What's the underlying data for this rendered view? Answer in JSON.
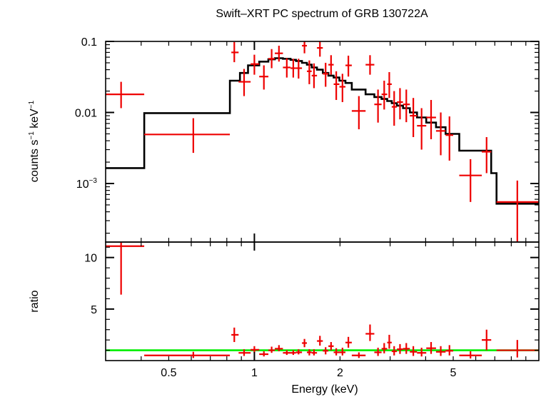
{
  "chart_data": [
    {
      "type": "scatter",
      "title": "Swift–XRT PC spectrum of GRB 130722A",
      "ylabel_parts": [
        "counts s",
        "−1",
        " keV",
        "−1"
      ],
      "xscale": "log",
      "yscale": "log",
      "xlim": [
        0.3,
        10
      ],
      "ylim": [
        0.00015,
        0.1
      ],
      "yticks": [
        {
          "v": 0.1,
          "label": "0.1"
        },
        {
          "v": 0.01,
          "label": "0.01"
        },
        {
          "v": 0.001,
          "base": "10",
          "exp": "−3"
        }
      ],
      "colors": {
        "data": "#ee0000",
        "model": "#000000"
      },
      "series": [
        {
          "points": [
            {
              "x": 0.34,
              "xlo": 0.3,
              "xhi": 0.41,
              "y": 0.018,
              "ylo": 0.0115,
              "yhi": 0.027
            },
            {
              "x": 0.61,
              "xlo": 0.41,
              "xhi": 0.82,
              "y": 0.0049,
              "ylo": 0.0027,
              "yhi": 0.0083
            },
            {
              "x": 0.85,
              "xlo": 0.83,
              "xhi": 0.88,
              "y": 0.07,
              "ylo": 0.051,
              "yhi": 0.098
            },
            {
              "x": 0.92,
              "xlo": 0.88,
              "xhi": 0.97,
              "y": 0.027,
              "ylo": 0.017,
              "yhi": 0.041
            },
            {
              "x": 1.0,
              "xlo": 0.97,
              "xhi": 1.04,
              "y": 0.048,
              "ylo": 0.034,
              "yhi": 0.065
            },
            {
              "x": 1.08,
              "xlo": 1.04,
              "xhi": 1.12,
              "y": 0.032,
              "ylo": 0.021,
              "yhi": 0.046
            },
            {
              "x": 1.15,
              "xlo": 1.12,
              "xhi": 1.18,
              "y": 0.057,
              "ylo": 0.042,
              "yhi": 0.078
            },
            {
              "x": 1.22,
              "xlo": 1.18,
              "xhi": 1.26,
              "y": 0.068,
              "ylo": 0.052,
              "yhi": 0.087
            },
            {
              "x": 1.3,
              "xlo": 1.26,
              "xhi": 1.34,
              "y": 0.043,
              "ylo": 0.031,
              "yhi": 0.058
            },
            {
              "x": 1.37,
              "xlo": 1.34,
              "xhi": 1.4,
              "y": 0.042,
              "ylo": 0.031,
              "yhi": 0.057
            },
            {
              "x": 1.43,
              "xlo": 1.4,
              "xhi": 1.47,
              "y": 0.042,
              "ylo": 0.03,
              "yhi": 0.057
            },
            {
              "x": 1.5,
              "xlo": 1.47,
              "xhi": 1.53,
              "y": 0.087,
              "ylo": 0.068,
              "yhi": 0.105
            },
            {
              "x": 1.56,
              "xlo": 1.53,
              "xhi": 1.59,
              "y": 0.038,
              "ylo": 0.025,
              "yhi": 0.054
            },
            {
              "x": 1.62,
              "xlo": 1.59,
              "xhi": 1.66,
              "y": 0.033,
              "ylo": 0.022,
              "yhi": 0.049
            },
            {
              "x": 1.7,
              "xlo": 1.66,
              "xhi": 1.74,
              "y": 0.081,
              "ylo": 0.061,
              "yhi": 0.104
            },
            {
              "x": 1.78,
              "xlo": 1.74,
              "xhi": 1.82,
              "y": 0.035,
              "ylo": 0.023,
              "yhi": 0.05
            },
            {
              "x": 1.86,
              "xlo": 1.82,
              "xhi": 1.9,
              "y": 0.047,
              "ylo": 0.034,
              "yhi": 0.064
            },
            {
              "x": 1.94,
              "xlo": 1.9,
              "xhi": 1.99,
              "y": 0.025,
              "ylo": 0.015,
              "yhi": 0.038
            },
            {
              "x": 2.04,
              "xlo": 1.99,
              "xhi": 2.09,
              "y": 0.023,
              "ylo": 0.014,
              "yhi": 0.035
            },
            {
              "x": 2.14,
              "xlo": 2.09,
              "xhi": 2.2,
              "y": 0.046,
              "ylo": 0.032,
              "yhi": 0.063
            },
            {
              "x": 2.33,
              "xlo": 2.2,
              "xhi": 2.46,
              "y": 0.0105,
              "ylo": 0.0058,
              "yhi": 0.017
            },
            {
              "x": 2.55,
              "xlo": 2.46,
              "xhi": 2.64,
              "y": 0.047,
              "ylo": 0.034,
              "yhi": 0.064
            },
            {
              "x": 2.72,
              "xlo": 2.64,
              "xhi": 2.8,
              "y": 0.013,
              "ylo": 0.0072,
              "yhi": 0.021
            },
            {
              "x": 2.86,
              "xlo": 2.8,
              "xhi": 2.93,
              "y": 0.018,
              "ylo": 0.011,
              "yhi": 0.028
            },
            {
              "x": 2.98,
              "xlo": 2.93,
              "xhi": 3.04,
              "y": 0.025,
              "ylo": 0.016,
              "yhi": 0.037
            },
            {
              "x": 3.1,
              "xlo": 3.04,
              "xhi": 3.17,
              "y": 0.012,
              "ylo": 0.0065,
              "yhi": 0.02
            },
            {
              "x": 3.25,
              "xlo": 3.17,
              "xhi": 3.33,
              "y": 0.014,
              "ylo": 0.008,
              "yhi": 0.022
            },
            {
              "x": 3.42,
              "xlo": 3.33,
              "xhi": 3.52,
              "y": 0.013,
              "ylo": 0.0073,
              "yhi": 0.021
            },
            {
              "x": 3.62,
              "xlo": 3.52,
              "xhi": 3.73,
              "y": 0.009,
              "ylo": 0.0045,
              "yhi": 0.016
            },
            {
              "x": 3.87,
              "xlo": 3.73,
              "xhi": 4.02,
              "y": 0.0065,
              "ylo": 0.003,
              "yhi": 0.0115
            },
            {
              "x": 4.18,
              "xlo": 4.02,
              "xhi": 4.35,
              "y": 0.0085,
              "ylo": 0.0042,
              "yhi": 0.015
            },
            {
              "x": 4.52,
              "xlo": 4.35,
              "xhi": 4.7,
              "y": 0.0055,
              "ylo": 0.0025,
              "yhi": 0.01
            },
            {
              "x": 4.85,
              "xlo": 4.7,
              "xhi": 5.0,
              "y": 0.0048,
              "ylo": 0.0021,
              "yhi": 0.0088
            },
            {
              "x": 5.75,
              "xlo": 5.25,
              "xhi": 6.3,
              "y": 0.0013,
              "ylo": 0.00055,
              "yhi": 0.0022
            },
            {
              "x": 6.55,
              "xlo": 6.3,
              "xhi": 6.8,
              "y": 0.0028,
              "ylo": 0.0014,
              "yhi": 0.0045
            },
            {
              "x": 8.4,
              "xlo": 7.1,
              "xhi": 10.0,
              "y": 0.00055,
              "ylo": 0.00015,
              "yhi": 0.0011
            }
          ]
        }
      ],
      "model_steps": [
        {
          "x0": 0.3,
          "x1": 0.41,
          "y": 0.00165
        },
        {
          "x0": 0.41,
          "x1": 0.82,
          "y": 0.0098
        },
        {
          "x0": 0.82,
          "x1": 0.89,
          "y": 0.028
        },
        {
          "x0": 0.89,
          "x1": 0.95,
          "y": 0.036
        },
        {
          "x0": 0.95,
          "x1": 1.04,
          "y": 0.046
        },
        {
          "x0": 1.04,
          "x1": 1.12,
          "y": 0.052
        },
        {
          "x0": 1.12,
          "x1": 1.18,
          "y": 0.056
        },
        {
          "x0": 1.18,
          "x1": 1.26,
          "y": 0.058
        },
        {
          "x0": 1.26,
          "x1": 1.34,
          "y": 0.057
        },
        {
          "x0": 1.34,
          "x1": 1.4,
          "y": 0.055
        },
        {
          "x0": 1.4,
          "x1": 1.47,
          "y": 0.053
        },
        {
          "x0": 1.47,
          "x1": 1.53,
          "y": 0.05
        },
        {
          "x0": 1.53,
          "x1": 1.59,
          "y": 0.047
        },
        {
          "x0": 1.59,
          "x1": 1.66,
          "y": 0.043
        },
        {
          "x0": 1.66,
          "x1": 1.74,
          "y": 0.04
        },
        {
          "x0": 1.74,
          "x1": 1.82,
          "y": 0.036
        },
        {
          "x0": 1.82,
          "x1": 1.9,
          "y": 0.033
        },
        {
          "x0": 1.9,
          "x1": 1.99,
          "y": 0.031
        },
        {
          "x0": 1.99,
          "x1": 2.09,
          "y": 0.028
        },
        {
          "x0": 2.09,
          "x1": 2.2,
          "y": 0.026
        },
        {
          "x0": 2.2,
          "x1": 2.46,
          "y": 0.021
        },
        {
          "x0": 2.46,
          "x1": 2.64,
          "y": 0.018
        },
        {
          "x0": 2.64,
          "x1": 2.8,
          "y": 0.0165
        },
        {
          "x0": 2.8,
          "x1": 2.93,
          "y": 0.0155
        },
        {
          "x0": 2.93,
          "x1": 3.04,
          "y": 0.0145
        },
        {
          "x0": 3.04,
          "x1": 3.17,
          "y": 0.0135
        },
        {
          "x0": 3.17,
          "x1": 3.33,
          "y": 0.0125
        },
        {
          "x0": 3.33,
          "x1": 3.52,
          "y": 0.0115
        },
        {
          "x0": 3.52,
          "x1": 3.73,
          "y": 0.01
        },
        {
          "x0": 3.73,
          "x1": 4.02,
          "y": 0.0085
        },
        {
          "x0": 4.02,
          "x1": 4.35,
          "y": 0.0072
        },
        {
          "x0": 4.35,
          "x1": 4.7,
          "y": 0.0062
        },
        {
          "x0": 4.7,
          "x1": 5.25,
          "y": 0.005
        },
        {
          "x0": 5.25,
          "x1": 6.8,
          "y": 0.0029
        },
        {
          "x0": 6.8,
          "x1": 7.1,
          "y": 0.0014
        },
        {
          "x0": 7.1,
          "x1": 10.0,
          "y": 0.00052
        }
      ]
    },
    {
      "type": "scatter",
      "xlabel": "Energy (keV)",
      "ylabel": "ratio",
      "xscale": "log",
      "xlim": [
        0.3,
        10
      ],
      "ylim": [
        0,
        11.5
      ],
      "yticks": [
        {
          "v": 10,
          "label": "10"
        },
        {
          "v": 5,
          "label": "5"
        }
      ],
      "xticks": [
        {
          "v": 0.5,
          "label": "0.5"
        },
        {
          "v": 1,
          "label": "1"
        },
        {
          "v": 2,
          "label": "2"
        },
        {
          "v": 5,
          "label": "5"
        }
      ],
      "reference_line": 1,
      "colors": {
        "data": "#ee0000",
        "reference": "#00ee00"
      },
      "series": [
        {
          "points": [
            {
              "x": 0.34,
              "xlo": 0.3,
              "xhi": 0.41,
              "y": 11.1,
              "ylo": 6.4,
              "yhi": 11.5
            },
            {
              "x": 0.61,
              "xlo": 0.41,
              "xhi": 0.82,
              "y": 0.5,
              "ylo": 0.25,
              "yhi": 0.85
            },
            {
              "x": 0.85,
              "xlo": 0.83,
              "xhi": 0.88,
              "y": 2.5,
              "ylo": 1.8,
              "yhi": 3.2
            },
            {
              "x": 0.92,
              "xlo": 0.88,
              "xhi": 0.97,
              "y": 0.75,
              "ylo": 0.45,
              "yhi": 1.1
            },
            {
              "x": 1.0,
              "xlo": 0.97,
              "xhi": 1.04,
              "y": 1.05,
              "ylo": 0.75,
              "yhi": 1.4
            },
            {
              "x": 1.08,
              "xlo": 1.04,
              "xhi": 1.12,
              "y": 0.62,
              "ylo": 0.4,
              "yhi": 0.9
            },
            {
              "x": 1.15,
              "xlo": 1.12,
              "xhi": 1.18,
              "y": 1.0,
              "ylo": 0.75,
              "yhi": 1.35
            },
            {
              "x": 1.22,
              "xlo": 1.18,
              "xhi": 1.26,
              "y": 1.15,
              "ylo": 0.9,
              "yhi": 1.5
            },
            {
              "x": 1.3,
              "xlo": 1.26,
              "xhi": 1.34,
              "y": 0.75,
              "ylo": 0.55,
              "yhi": 1.0
            },
            {
              "x": 1.37,
              "xlo": 1.34,
              "xhi": 1.4,
              "y": 0.75,
              "ylo": 0.55,
              "yhi": 1.0
            },
            {
              "x": 1.43,
              "xlo": 1.4,
              "xhi": 1.47,
              "y": 0.8,
              "ylo": 0.6,
              "yhi": 1.1
            },
            {
              "x": 1.5,
              "xlo": 1.47,
              "xhi": 1.53,
              "y": 1.7,
              "ylo": 1.3,
              "yhi": 2.1
            },
            {
              "x": 1.56,
              "xlo": 1.53,
              "xhi": 1.59,
              "y": 0.8,
              "ylo": 0.5,
              "yhi": 1.1
            },
            {
              "x": 1.62,
              "xlo": 1.59,
              "xhi": 1.66,
              "y": 0.75,
              "ylo": 0.5,
              "yhi": 1.1
            },
            {
              "x": 1.7,
              "xlo": 1.66,
              "xhi": 1.74,
              "y": 1.9,
              "ylo": 1.45,
              "yhi": 2.4
            },
            {
              "x": 1.78,
              "xlo": 1.74,
              "xhi": 1.82,
              "y": 0.95,
              "ylo": 0.6,
              "yhi": 1.3
            },
            {
              "x": 1.86,
              "xlo": 1.82,
              "xhi": 1.9,
              "y": 1.4,
              "ylo": 1.0,
              "yhi": 1.8
            },
            {
              "x": 1.94,
              "xlo": 1.9,
              "xhi": 1.99,
              "y": 0.8,
              "ylo": 0.5,
              "yhi": 1.2
            },
            {
              "x": 2.04,
              "xlo": 1.99,
              "xhi": 2.09,
              "y": 0.8,
              "ylo": 0.5,
              "yhi": 1.25
            },
            {
              "x": 2.14,
              "xlo": 2.09,
              "xhi": 2.2,
              "y": 1.75,
              "ylo": 1.25,
              "yhi": 2.3
            },
            {
              "x": 2.33,
              "xlo": 2.2,
              "xhi": 2.46,
              "y": 0.5,
              "ylo": 0.25,
              "yhi": 0.8
            },
            {
              "x": 2.55,
              "xlo": 2.46,
              "xhi": 2.64,
              "y": 2.6,
              "ylo": 1.9,
              "yhi": 3.5
            },
            {
              "x": 2.72,
              "xlo": 2.64,
              "xhi": 2.8,
              "y": 0.8,
              "ylo": 0.45,
              "yhi": 1.25
            },
            {
              "x": 2.86,
              "xlo": 2.8,
              "xhi": 2.93,
              "y": 1.15,
              "ylo": 0.7,
              "yhi": 1.7
            },
            {
              "x": 2.98,
              "xlo": 2.93,
              "xhi": 3.04,
              "y": 1.75,
              "ylo": 1.15,
              "yhi": 2.5
            },
            {
              "x": 3.1,
              "xlo": 3.04,
              "xhi": 3.17,
              "y": 0.9,
              "ylo": 0.5,
              "yhi": 1.4
            },
            {
              "x": 3.25,
              "xlo": 3.17,
              "xhi": 3.33,
              "y": 1.1,
              "ylo": 0.65,
              "yhi": 1.6
            },
            {
              "x": 3.42,
              "xlo": 3.33,
              "xhi": 3.52,
              "y": 1.15,
              "ylo": 0.65,
              "yhi": 1.7
            },
            {
              "x": 3.62,
              "xlo": 3.52,
              "xhi": 3.73,
              "y": 0.85,
              "ylo": 0.45,
              "yhi": 1.4
            },
            {
              "x": 3.87,
              "xlo": 3.73,
              "xhi": 4.02,
              "y": 0.75,
              "ylo": 0.4,
              "yhi": 1.25
            },
            {
              "x": 4.18,
              "xlo": 4.02,
              "xhi": 4.35,
              "y": 1.2,
              "ylo": 0.65,
              "yhi": 1.8
            },
            {
              "x": 4.52,
              "xlo": 4.35,
              "xhi": 4.7,
              "y": 0.85,
              "ylo": 0.45,
              "yhi": 1.4
            },
            {
              "x": 4.85,
              "xlo": 4.7,
              "xhi": 5.0,
              "y": 0.95,
              "ylo": 0.5,
              "yhi": 1.5
            },
            {
              "x": 5.75,
              "xlo": 5.25,
              "xhi": 6.3,
              "y": 0.5,
              "ylo": 0.2,
              "yhi": 0.9
            },
            {
              "x": 6.55,
              "xlo": 6.3,
              "xhi": 6.8,
              "y": 2.0,
              "ylo": 1.0,
              "yhi": 3.0
            },
            {
              "x": 8.4,
              "xlo": 7.1,
              "xhi": 10.0,
              "y": 1.0,
              "ylo": 0.3,
              "yhi": 2.0
            }
          ]
        }
      ]
    }
  ]
}
